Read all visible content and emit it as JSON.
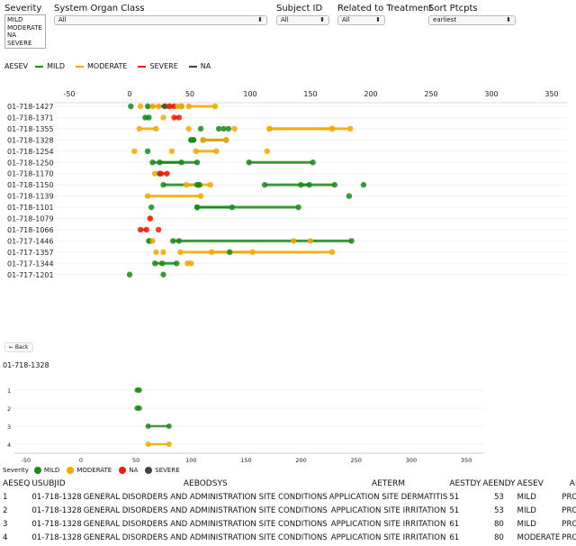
{
  "filters": {
    "severity": {
      "label": "Severity",
      "options": [
        "MILD",
        "MODERATE",
        "NA",
        "SEVERE"
      ]
    },
    "soc": {
      "label": "System Organ Class",
      "value": "All"
    },
    "subject": {
      "label": "Subject ID",
      "value": "All"
    },
    "related": {
      "label": "Related to Treatment",
      "value": "All"
    },
    "sort": {
      "label": "Sort Ptcpts",
      "value": "earliest"
    }
  },
  "legend": {
    "title": "AESEV",
    "items": [
      "MILD",
      "MODERATE",
      "SEVERE",
      "NA"
    ]
  },
  "colors": {
    "MILD": "#1a8a1a",
    "MODERATE": "#f5a800",
    "SEVERE": "#ee1c0c",
    "NA": "#444444"
  },
  "chart_data": [
    {
      "type": "timeline",
      "xlim": [
        -60,
        360
      ],
      "xticks": [
        -50,
        0,
        50,
        100,
        150,
        200,
        250,
        300,
        350
      ],
      "rows": [
        "01-718-1427",
        "01-718-1371",
        "01-718-1355",
        "01-718-1328",
        "01-718-1254",
        "01-718-1250",
        "01-718-1170",
        "01-718-1150",
        "01-718-1139",
        "01-718-1101",
        "01-718-1079",
        "01-718-1066",
        "01-717-1446",
        "01-717-1357",
        "01-717-1344",
        "01-717-1201"
      ],
      "events": [
        [
          "01-718-1427",
          "MILD",
          1,
          1
        ],
        [
          "01-718-1427",
          "MODERATE",
          9,
          9
        ],
        [
          "01-718-1427",
          "MILD",
          15,
          43
        ],
        [
          "01-718-1427",
          "MODERATE",
          19,
          24
        ],
        [
          "01-718-1427",
          "MODERATE",
          31,
          34
        ],
        [
          "01-718-1427",
          "SEVERE",
          33,
          37
        ],
        [
          "01-718-1427",
          "NA",
          29,
          29
        ],
        [
          "01-718-1427",
          "MODERATE",
          40,
          43
        ],
        [
          "01-718-1427",
          "MODERATE",
          49,
          71
        ],
        [
          "01-718-1371",
          "MILD",
          13,
          16
        ],
        [
          "01-718-1371",
          "MODERATE",
          28,
          28
        ],
        [
          "01-718-1371",
          "SEVERE",
          37,
          41
        ],
        [
          "01-718-1355",
          "MODERATE",
          8,
          22
        ],
        [
          "01-718-1355",
          "MODERATE",
          49,
          49
        ],
        [
          "01-718-1355",
          "MILD",
          59,
          59
        ],
        [
          "01-718-1355",
          "MILD",
          74,
          74
        ],
        [
          "01-718-1355",
          "MILD",
          78,
          78
        ],
        [
          "01-718-1355",
          "MILD",
          82,
          82
        ],
        [
          "01-718-1355",
          "MODERATE",
          87,
          87
        ],
        [
          "01-718-1355",
          "MODERATE",
          116,
          168
        ],
        [
          "01-718-1355",
          "MODERATE",
          116,
          168
        ],
        [
          "01-718-1355",
          "MODERATE",
          168,
          183
        ],
        [
          "01-718-1328",
          "MILD",
          51,
          53
        ],
        [
          "01-718-1328",
          "MILD",
          51,
          53
        ],
        [
          "01-718-1328",
          "MILD",
          61,
          80
        ],
        [
          "01-718-1328",
          "MODERATE",
          61,
          80
        ],
        [
          "01-718-1254",
          "MODERATE",
          4,
          4
        ],
        [
          "01-718-1254",
          "MILD",
          15,
          15
        ],
        [
          "01-718-1254",
          "MODERATE",
          35,
          35
        ],
        [
          "01-718-1254",
          "MODERATE",
          55,
          72
        ],
        [
          "01-718-1254",
          "MODERATE",
          114,
          114
        ],
        [
          "01-718-1250",
          "MILD",
          19,
          56
        ],
        [
          "01-718-1250",
          "MILD",
          25,
          43
        ],
        [
          "01-718-1250",
          "MILD",
          99,
          152
        ],
        [
          "01-718-1170",
          "MODERATE",
          21,
          21
        ],
        [
          "01-718-1170",
          "NA",
          25,
          25
        ],
        [
          "01-718-1170",
          "SEVERE",
          26,
          31
        ],
        [
          "01-718-1150",
          "MILD",
          28,
          57
        ],
        [
          "01-718-1150",
          "MODERATE",
          47,
          67
        ],
        [
          "01-718-1150",
          "MILD",
          56,
          58
        ],
        [
          "01-718-1150",
          "MILD",
          112,
          170
        ],
        [
          "01-718-1150",
          "MILD",
          142,
          149
        ],
        [
          "01-718-1150",
          "MILD",
          194,
          194
        ],
        [
          "01-718-1139",
          "MODERATE",
          15,
          59
        ],
        [
          "01-718-1139",
          "MILD",
          182,
          182
        ],
        [
          "01-718-1101",
          "MILD",
          18,
          18
        ],
        [
          "01-718-1101",
          "MILD",
          56,
          140
        ],
        [
          "01-718-1101",
          "MILD",
          56,
          85
        ],
        [
          "01-718-1079",
          "MODERATE",
          17,
          17
        ],
        [
          "01-718-1079",
          "SEVERE",
          17,
          17
        ],
        [
          "01-718-1066",
          "SEVERE",
          9,
          14
        ],
        [
          "01-718-1066",
          "SEVERE",
          24,
          24
        ],
        [
          "01-717-1446",
          "MILD",
          16,
          17
        ],
        [
          "01-717-1446",
          "MODERATE",
          19,
          19
        ],
        [
          "01-717-1446",
          "MILD",
          36,
          184
        ],
        [
          "01-717-1446",
          "MILD",
          41,
          41
        ],
        [
          "01-717-1446",
          "MODERATE",
          136,
          136
        ],
        [
          "01-717-1446",
          "MODERATE",
          150,
          150
        ],
        [
          "01-717-1357",
          "MODERATE",
          22,
          22
        ],
        [
          "01-717-1357",
          "MODERATE",
          28,
          28
        ],
        [
          "01-717-1357",
          "MODERATE",
          42,
          168
        ],
        [
          "01-717-1357",
          "MODERATE",
          68,
          102
        ],
        [
          "01-717-1357",
          "MILD",
          83,
          83
        ],
        [
          "01-717-1344",
          "MILD",
          21,
          39
        ],
        [
          "01-717-1344",
          "MILD",
          27,
          27
        ],
        [
          "01-717-1344",
          "MODERATE",
          48,
          51
        ],
        [
          "01-717-1201",
          "MILD",
          0,
          0
        ],
        [
          "01-717-1201",
          "MILD",
          28,
          28
        ]
      ]
    },
    {
      "type": "timeline",
      "subject": "01-718-1328",
      "xlim": [
        -55,
        365
      ],
      "xticks": [
        -50,
        0,
        50,
        100,
        150,
        200,
        250,
        300,
        350
      ],
      "rows": [
        "1",
        "2",
        "3",
        "4"
      ],
      "events": [
        [
          "1",
          "MILD",
          51,
          53
        ],
        [
          "2",
          "MILD",
          51,
          53
        ],
        [
          "3",
          "MILD",
          61,
          80
        ],
        [
          "4",
          "MODERATE",
          61,
          80
        ]
      ]
    }
  ],
  "detail": {
    "back_label": "← Back",
    "title": "01-718-1328",
    "legend_title": "Severity",
    "legend_items": [
      "MILD",
      "MODERATE",
      "NA",
      "SEVERE"
    ],
    "table": {
      "columns": [
        "AESEQ",
        "USUBJID",
        "AEBODSYS",
        "AETERM",
        "AESTDY",
        "AEENDY",
        "AESEV",
        "AEREL"
      ],
      "rows": [
        [
          "1",
          "01-718-1328",
          "GENERAL DISORDERS AND ADMINISTRATION SITE CONDITIONS",
          "APPLICATION SITE DERMATITIS",
          "51",
          "53",
          "MILD",
          "PROBABLE"
        ],
        [
          "2",
          "01-718-1328",
          "GENERAL DISORDERS AND ADMINISTRATION SITE CONDITIONS",
          "APPLICATION SITE IRRITATION",
          "51",
          "53",
          "MILD",
          "PROBABLE"
        ],
        [
          "3",
          "01-718-1328",
          "GENERAL DISORDERS AND ADMINISTRATION SITE CONDITIONS",
          "APPLICATION SITE IRRITATION",
          "61",
          "80",
          "MILD",
          "PROBABLE"
        ],
        [
          "4",
          "01-718-1328",
          "GENERAL DISORDERS AND ADMINISTRATION SITE CONDITIONS",
          "APPLICATION SITE IRRITATION",
          "61",
          "80",
          "MODERATE",
          "PROBABLE"
        ]
      ]
    }
  }
}
